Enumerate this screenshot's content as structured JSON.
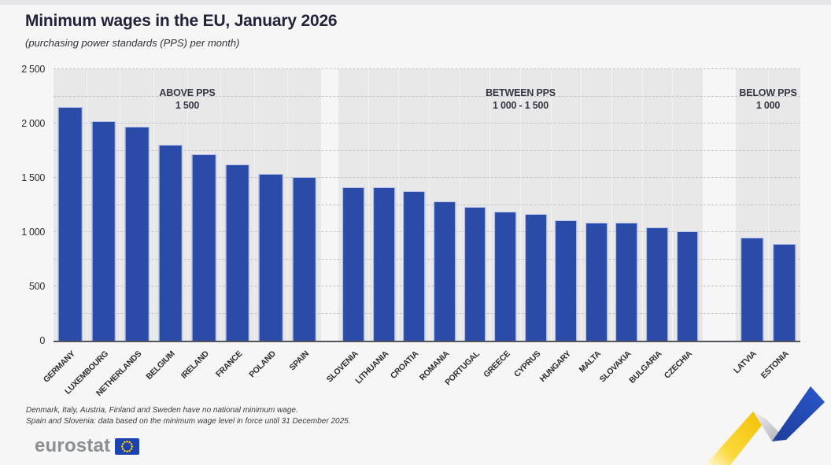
{
  "title": "Minimum wages in the EU, January 2026",
  "subtitle": "(purchasing power standards (PPS) per month)",
  "chart_data": {
    "type": "bar",
    "title": "Minimum wages in the EU, January 2026",
    "subtitle": "(purchasing power standards (PPS) per month)",
    "unit": "PPS per month",
    "ylim": [
      0,
      2500
    ],
    "gridline_step": 250,
    "grid": "dashed horizontal every 250, solid zero baseline",
    "legend_position": "none",
    "yticks": [
      {
        "label": "2 500",
        "value": 2500
      },
      {
        "label": "2 000",
        "value": 2000
      },
      {
        "label": "1 500",
        "value": 1500
      },
      {
        "label": "1 000",
        "value": 1000
      },
      {
        "label": "500",
        "value": 500
      },
      {
        "label": "0",
        "value": 0
      }
    ],
    "groups": [
      {
        "heading_line1": "ABOVE PPS",
        "heading_line2": "1 500",
        "categories": [
          "GERMANY",
          "LUXEMBOURG",
          "NETHERLANDS",
          "BELGIUM",
          "IRELAND",
          "FRANCE",
          "POLAND",
          "SPAIN"
        ],
        "values": [
          2150,
          2025,
          1970,
          1805,
          1720,
          1625,
          1535,
          1505
        ]
      },
      {
        "heading_line1": "BETWEEN PPS",
        "heading_line2": "1 000 - 1 500",
        "categories": [
          "SLOVENIA",
          "LITHUANIA",
          "CROATIA",
          "ROMANIA",
          "PORTUGAL",
          "GREECE",
          "CYPRUS",
          "HUNGARY",
          "MALTA",
          "SLOVAKIA",
          "BULGARIA",
          "CZECHIA"
        ],
        "values": [
          1415,
          1410,
          1375,
          1280,
          1235,
          1190,
          1170,
          1110,
          1090,
          1085,
          1040,
          1010
        ]
      },
      {
        "heading_line1": "BELOW PPS",
        "heading_line2": "1 000",
        "categories": [
          "LATVIA",
          "ESTONIA"
        ],
        "values": [
          950,
          890
        ]
      }
    ]
  },
  "footnotes": [
    "Denmark, Italy, Austria, Finland and Sweden have no national minimum wage.",
    "Spain and Slovenia: data based on the minimum wage level in force until 31 December 2025."
  ],
  "logo": {
    "text": "eurostat"
  },
  "colors": {
    "bar_blue": "#2A4BA8",
    "band_gray": "#E8E8E9",
    "background": "#F6F6F7",
    "title_text": "#20233A",
    "ribbon_yellow": "#F5C500",
    "ribbon_blue": "#2450BE",
    "logo_gray": "#8C9095",
    "flag_blue": "#1C43B0",
    "star_yellow": "#FFD200"
  }
}
